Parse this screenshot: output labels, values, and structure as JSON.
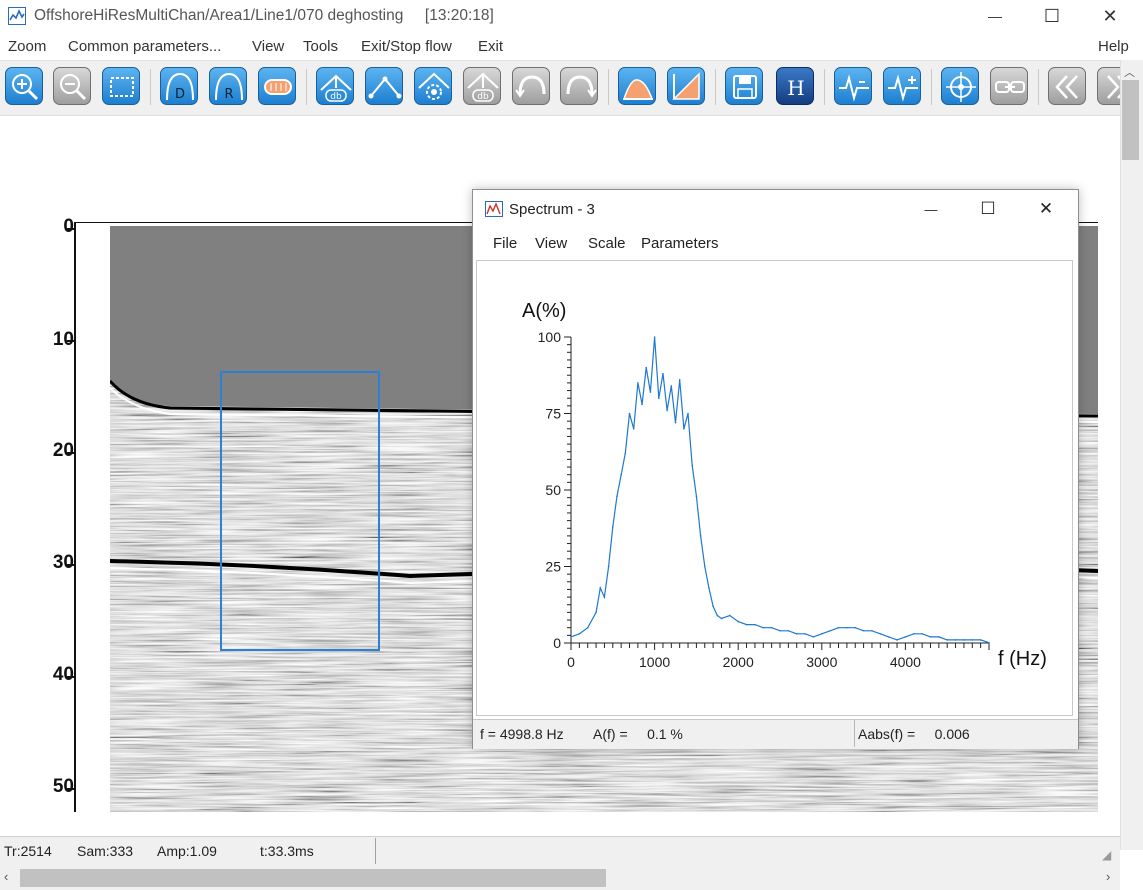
{
  "window": {
    "title": "OffshoreHiResMultiChan/Area1/Line1/070 deghosting",
    "time": "[13:20:18]",
    "minimize": "—",
    "maximize": "☐",
    "close": "✕"
  },
  "menu": {
    "zoom": "Zoom",
    "common_parameters": "Common parameters...",
    "view": "View",
    "tools": "Tools",
    "exit_stop_flow": "Exit/Stop flow",
    "exit": "Exit",
    "help": "Help"
  },
  "toolbar": {
    "tools": [
      {
        "name": "zoom-in-tool",
        "icon": "zoom-in-icon"
      },
      {
        "name": "zoom-out-tool",
        "icon": "zoom-out-icon"
      },
      {
        "name": "zoom-all-tool",
        "icon": "zoom-fit-icon"
      },
      {
        "name": "d-tool",
        "icon": "d-arch-icon",
        "text": "D"
      },
      {
        "name": "r-tool",
        "icon": "r-arch-icon",
        "text": "R"
      },
      {
        "name": "gain-tool",
        "icon": "gain-icon"
      },
      {
        "name": "db-up-tool",
        "icon": "db-up-icon",
        "text": "db"
      },
      {
        "name": "pick-tool",
        "icon": "pick-line-icon"
      },
      {
        "name": "settings-tool",
        "icon": "gear-icon"
      },
      {
        "name": "db-down-tool",
        "icon": "db-down-icon",
        "text": "db"
      },
      {
        "name": "undo-tool",
        "icon": "undo-arc-icon"
      },
      {
        "name": "redo-tool",
        "icon": "redo-arc-icon"
      },
      {
        "name": "spectrum-tool",
        "icon": "spectrum-icon"
      },
      {
        "name": "fk-tool",
        "icon": "fk-icon"
      },
      {
        "name": "save-tool",
        "icon": "save-icon"
      },
      {
        "name": "header-tool",
        "icon": "header-icon",
        "text": "H"
      },
      {
        "name": "wiggle-minus-tool",
        "icon": "wiggle-icon"
      },
      {
        "name": "wiggle-plus-tool",
        "icon": "wiggle-plus-icon"
      },
      {
        "name": "target-tool",
        "icon": "crosshair-icon"
      },
      {
        "name": "link-tool",
        "icon": "link-icon"
      },
      {
        "name": "prev-tool",
        "icon": "double-left-icon"
      },
      {
        "name": "next-tool",
        "icon": "double-right-icon"
      }
    ]
  },
  "seismic": {
    "y_axis_labels": [
      "0",
      "10",
      "20",
      "30",
      "40",
      "50"
    ],
    "colors": {
      "water": "#808080",
      "selection": "#2f7fd6"
    }
  },
  "spectrum": {
    "title": "Spectrum - 3",
    "minimize": "—",
    "maximize": "☐",
    "close": "✕",
    "menu": {
      "file": "File",
      "view": "View",
      "scale": "Scale",
      "parameters": "Parameters"
    },
    "status": {
      "f": "f = 4998.8 Hz",
      "a": "A(f) =     0.1 %",
      "aabs": "Aabs(f) =     0.006"
    }
  },
  "chart_data": {
    "type": "line",
    "title": "",
    "xlabel": "f (Hz)",
    "ylabel": "A(%)",
    "xlim": [
      0,
      5000
    ],
    "ylim": [
      0,
      100
    ],
    "x_ticks": [
      "0",
      "1000",
      "2000",
      "3000",
      "4000"
    ],
    "y_ticks": [
      "0",
      "25",
      "50",
      "75",
      "100"
    ],
    "grid": false,
    "color": "#1f78d1",
    "series": [
      {
        "x": [
          0,
          100,
          200,
          300,
          350,
          400,
          450,
          500,
          550,
          600,
          650,
          700,
          750,
          800,
          850,
          900,
          950,
          1000,
          1050,
          1100,
          1150,
          1200,
          1250,
          1300,
          1350,
          1400,
          1450,
          1500,
          1550,
          1600,
          1650,
          1700,
          1750,
          1800,
          1900,
          2000,
          2100,
          2200,
          2300,
          2400,
          2500,
          2600,
          2700,
          2800,
          2900,
          3000,
          3100,
          3200,
          3300,
          3400,
          3500,
          3600,
          3700,
          3800,
          3900,
          4000,
          4100,
          4200,
          4300,
          4400,
          4500,
          4600,
          4700,
          4800,
          4900,
          5000
        ],
        "y": [
          2,
          3,
          5,
          10,
          18,
          15,
          25,
          38,
          48,
          55,
          62,
          75,
          70,
          85,
          78,
          90,
          82,
          100,
          80,
          88,
          76,
          84,
          72,
          86,
          70,
          75,
          58,
          48,
          35,
          25,
          18,
          12,
          9,
          8,
          9,
          7,
          6,
          6,
          5,
          5,
          4,
          4,
          3,
          3,
          2,
          3,
          4,
          5,
          5,
          5,
          4,
          4,
          3,
          2,
          1,
          2,
          3,
          3,
          2,
          2,
          1,
          1,
          1,
          1,
          1,
          0.1
        ]
      }
    ]
  },
  "status_bar": {
    "tr": "Tr:2514",
    "sam": "Sam:333",
    "amp": "Amp:1.09",
    "t": "t:33.3ms"
  }
}
